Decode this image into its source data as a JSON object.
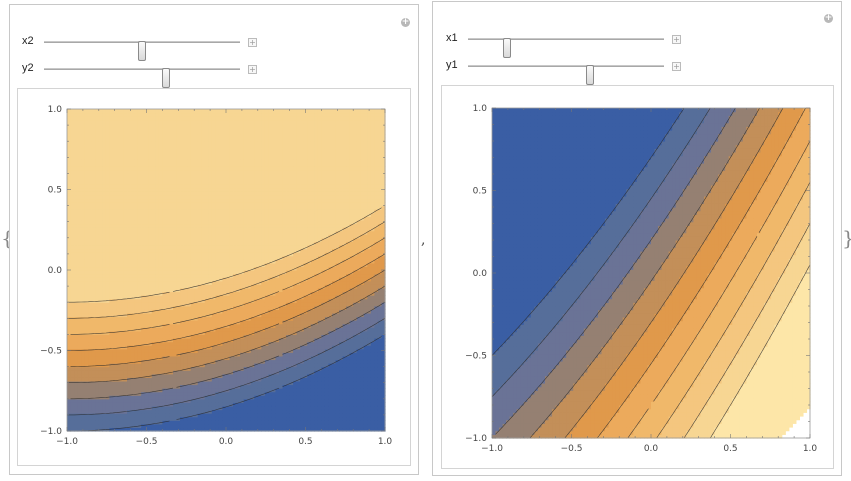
{
  "separators": {
    "open_brace": "{",
    "close_brace": "}",
    "comma": ","
  },
  "colors": {
    "contour_bands": [
      "#3a5ea4",
      "#566e9a",
      "#6a7396",
      "#958072",
      "#c38f59",
      "#e0994b",
      "#ecaa5c",
      "#f0b86a",
      "#f4c67f",
      "#f7d693",
      "#fde6a8",
      "#fff5d0"
    ],
    "panel_border": "#c8c8c8",
    "contour_line": "#2a2a2a"
  },
  "left_panel": {
    "controls": [
      {
        "label": "x2",
        "value": 0.5,
        "plus": "+"
      },
      {
        "label": "y2",
        "value": 0.62,
        "plus": "+"
      }
    ],
    "options_icon": "+",
    "chart_data": {
      "type": "contour",
      "title": "",
      "xlabel": "",
      "ylabel": "",
      "xlim": [
        -1.0,
        1.0
      ],
      "ylim": [
        -1.0,
        1.0
      ],
      "x_tick_labels": [
        "−1.0",
        "−0.5",
        "0.0",
        "0.5",
        "1.0"
      ],
      "y_tick_labels": [
        "1.0",
        "0.5",
        "0.0",
        "−0.5",
        "−1.0"
      ],
      "contour_levels": [
        -1.0,
        -0.9,
        -0.8,
        -0.7,
        -0.6,
        -0.5,
        -0.4,
        -0.3,
        -0.2
      ],
      "field": "y - 0.15*(x+1)^2"
    }
  },
  "right_panel": {
    "controls": [
      {
        "label": "x1",
        "value": 0.2,
        "plus": "+"
      },
      {
        "label": "y1",
        "value": 0.62,
        "plus": "+"
      }
    ],
    "options_icon": "+",
    "chart_data": {
      "type": "contour",
      "title": "",
      "xlabel": "",
      "ylabel": "",
      "xlim": [
        -1.0,
        1.0
      ],
      "ylim": [
        -1.0,
        1.0
      ],
      "x_tick_labels": [
        "−1.0",
        "−0.5",
        "0.0",
        "0.5",
        "1.0"
      ],
      "y_tick_labels": [
        "1.0",
        "0.5",
        "0.0",
        "−0.5",
        "−1.0"
      ],
      "contour_levels": [
        -0.5,
        -0.25,
        0.0,
        0.25,
        0.5,
        0.75,
        1.0,
        1.25,
        1.5,
        1.75
      ],
      "field": "x - y + 0.2*(x+1)^2",
      "undefined_region": "lower-right corner"
    }
  }
}
